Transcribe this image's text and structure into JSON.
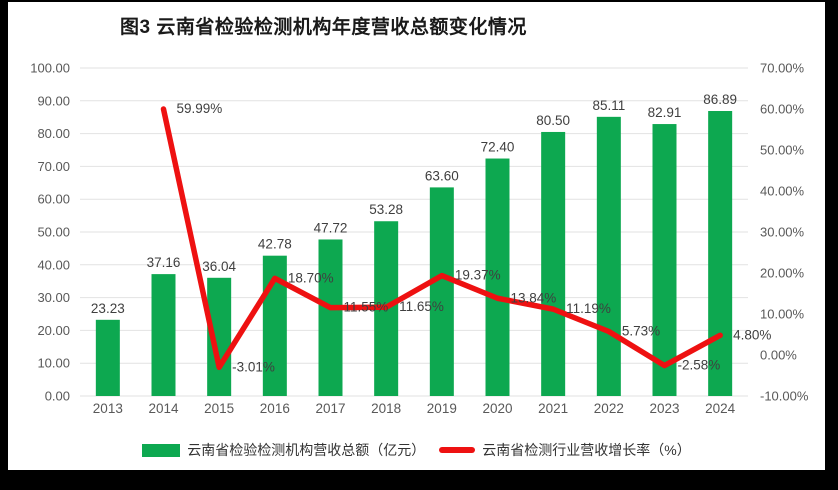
{
  "window": {
    "background": "#000000",
    "card_background": "#ffffff"
  },
  "chart": {
    "title": "图3  云南省检验检测机构年度营收总额变化情况"
  },
  "legend": {
    "bar_label": "云南省检验检测机构营收总额（亿元）",
    "line_label": "云南省检测行业营收增长率（%）"
  },
  "colors": {
    "bar": "#0DA850",
    "line": "#EE1111",
    "gridline": "#E2E2E2",
    "axis_text": "#595959",
    "data_label": "#3F3F3F",
    "title_text": "#1A1A1A"
  },
  "chart_data": {
    "type": "combo-bar-line",
    "title": "图3  云南省检验检测机构年度营收总额变化情况",
    "categories": [
      "2013",
      "2014",
      "2015",
      "2016",
      "2017",
      "2018",
      "2019",
      "2020",
      "2021",
      "2022",
      "2023",
      "2024"
    ],
    "series": [
      {
        "name": "云南省检验检测机构营收总额（亿元）",
        "type": "bar",
        "axis": "left",
        "values": [
          23.23,
          37.16,
          36.04,
          42.78,
          47.72,
          53.28,
          63.6,
          72.4,
          80.5,
          85.11,
          82.91,
          86.89
        ],
        "labels": [
          "23.23",
          "37.16",
          "36.04",
          "42.78",
          "47.72",
          "53.28",
          "63.60",
          "72.40",
          "80.50",
          "85.11",
          "82.91",
          "86.89"
        ]
      },
      {
        "name": "云南省检测行业营收增长率（%）",
        "type": "line",
        "axis": "right",
        "values": [
          null,
          59.99,
          -3.01,
          18.7,
          11.55,
          11.65,
          19.37,
          13.84,
          11.19,
          5.73,
          -2.58,
          4.8
        ],
        "labels": [
          null,
          "59.99%",
          "-3.01%",
          "18.70%",
          "11.55%",
          "11.65%",
          "19.37%",
          "13.84%",
          "11.19%",
          "5.73%",
          "-2.58%",
          "4.80%"
        ]
      }
    ],
    "left_axis": {
      "min": 0,
      "max": 100,
      "step": 10,
      "ticks": [
        "100.00",
        "90.00",
        "80.00",
        "70.00",
        "60.00",
        "50.00",
        "40.00",
        "30.00",
        "20.00",
        "10.00",
        "0.00"
      ]
    },
    "right_axis": {
      "min": -10,
      "max": 70,
      "step": 10,
      "ticks": [
        "70.00%",
        "60.00%",
        "50.00%",
        "40.00%",
        "30.00%",
        "20.00%",
        "10.00%",
        "0.00%",
        "-10.00%"
      ]
    },
    "grid": true,
    "legend_position": "bottom"
  }
}
